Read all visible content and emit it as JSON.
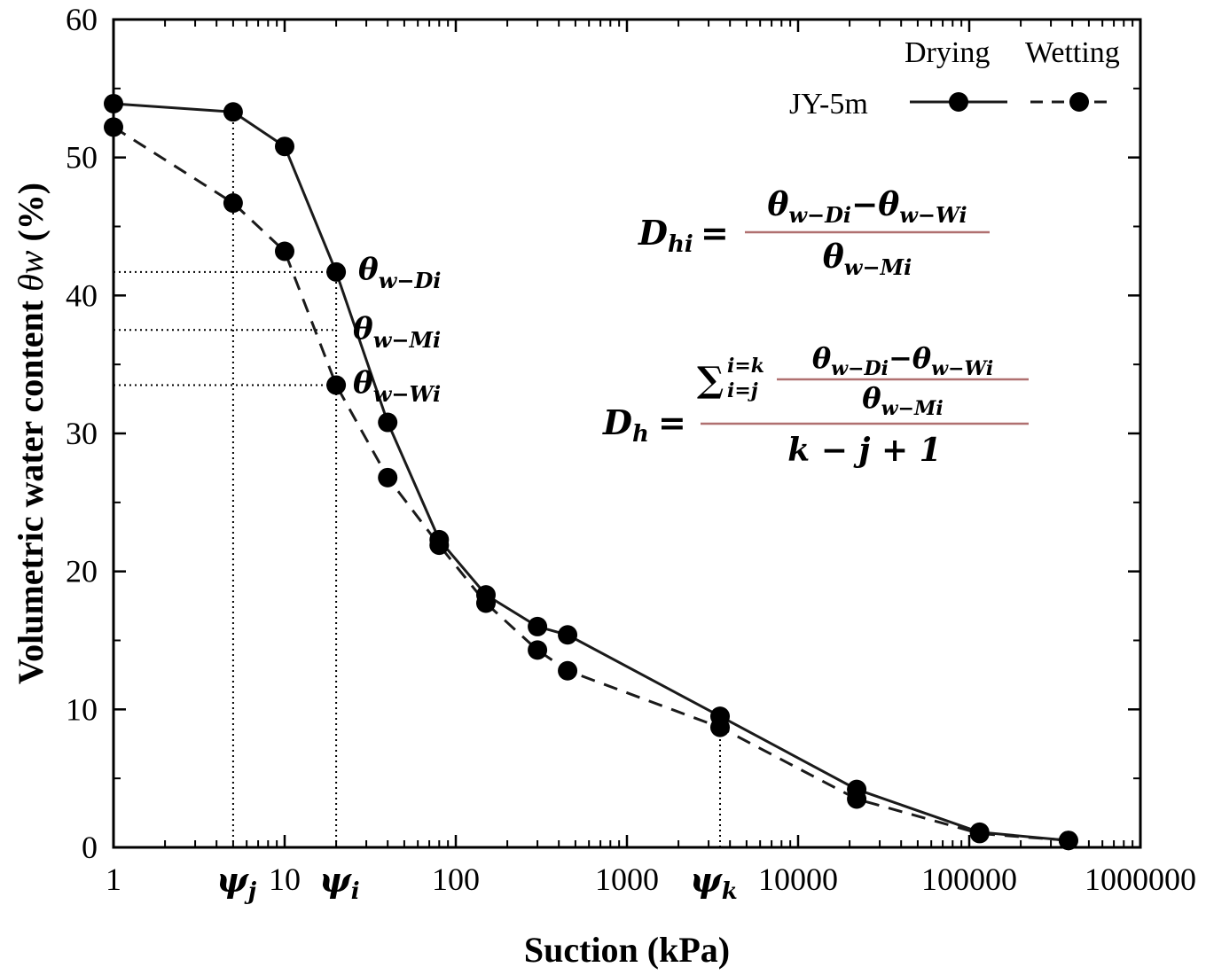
{
  "chart_data": {
    "type": "line",
    "xscale": "log",
    "xlim": [
      1,
      1000000
    ],
    "ylim": [
      0,
      60
    ],
    "xlabel": "Suction (kPa)",
    "ylabel_main": "Volumetric water content ",
    "ylabel_symbol": "θw",
    "ylabel_unit": " (%)",
    "x_ticks": [
      1,
      10,
      100,
      1000,
      10000,
      100000,
      1000000
    ],
    "x_tick_labels": [
      "1",
      "10",
      "100",
      "1000",
      "10000",
      "100000",
      "1000000"
    ],
    "y_ticks": [
      0,
      10,
      20,
      30,
      40,
      50,
      60
    ],
    "y_tick_labels": [
      "0",
      "10",
      "20",
      "30",
      "40",
      "50",
      "60"
    ],
    "legend": {
      "header_drying": "Drying",
      "header_wetting": "Wetting",
      "label": "JY-5m",
      "placement": "top-right"
    },
    "series": [
      {
        "name": "Drying",
        "style": "solid",
        "x": [
          1,
          5,
          10,
          20,
          40,
          80,
          150,
          300,
          450,
          3500,
          22000,
          115000,
          380000
        ],
        "y": [
          53.9,
          53.3,
          50.8,
          41.7,
          30.8,
          22.3,
          18.3,
          16.0,
          15.4,
          9.5,
          4.2,
          1.1,
          0.5
        ]
      },
      {
        "name": "Wetting",
        "style": "dashed",
        "x": [
          1,
          5,
          10,
          20,
          40,
          80,
          150,
          300,
          450,
          3500,
          22000,
          115000,
          380000
        ],
        "y": [
          52.2,
          46.7,
          43.2,
          33.5,
          26.8,
          21.9,
          17.7,
          14.3,
          12.8,
          8.7,
          3.5,
          1.0,
          0.5
        ]
      }
    ],
    "reference_lines": {
      "vertical_x": [
        5,
        20,
        3500
      ],
      "horizontal_y_at_x20": [
        41.7,
        37.5,
        33.5
      ]
    },
    "psi_labels": [
      {
        "x": 5,
        "base": "ψ",
        "sub": "j"
      },
      {
        "x": 20,
        "base": "ψ",
        "sub": "i"
      },
      {
        "x": 3500,
        "base": "ψ",
        "sub": "k"
      }
    ],
    "theta_labels": [
      {
        "base": "θ",
        "sub": "w−Di"
      },
      {
        "base": "θ",
        "sub": "w−Mi"
      },
      {
        "base": "θ",
        "sub": "w−Wi"
      }
    ],
    "formula_dhi": {
      "lhs_base": "D",
      "lhs_sub": "hi",
      "equals": "=",
      "num_a_base": "θ",
      "num_a_sub": "w−Di",
      "minus": "−",
      "num_b_base": "θ",
      "num_b_sub": "w−Wi",
      "den_base": "θ",
      "den_sub": "w−Mi"
    },
    "formula_dh": {
      "lhs_base": "D",
      "lhs_sub": "h",
      "equals": "=",
      "sum_symbol": "∑",
      "sum_upper": "i=k",
      "sum_lower": "i=j",
      "num_a_base": "θ",
      "num_a_sub": "w−Di",
      "minus": "−",
      "num_b_base": "θ",
      "num_b_sub": "w−Wi",
      "inner_den_base": "θ",
      "inner_den_sub": "w−Mi",
      "denominator": "k − j + 1"
    },
    "colors": {
      "axis": "#000000",
      "line": "#1a1a1a",
      "marker": "#000000",
      "fraction_bar": "#b07070"
    }
  }
}
